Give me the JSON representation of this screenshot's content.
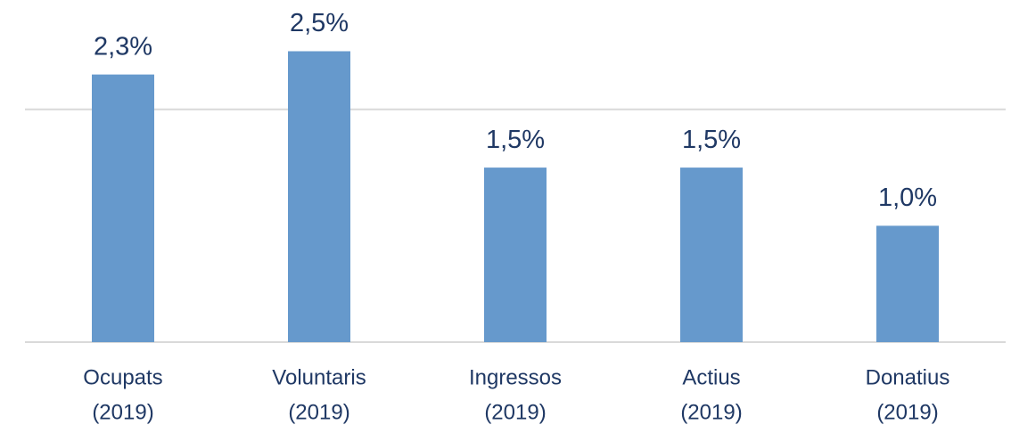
{
  "chart_data": {
    "type": "bar",
    "categories": [
      [
        "Ocupats",
        "(2019)"
      ],
      [
        "Voluntaris",
        "(2019)"
      ],
      [
        "Ingressos",
        "(2019)"
      ],
      [
        "Actius",
        "(2019)"
      ],
      [
        "Donatius",
        "(2019)"
      ]
    ],
    "values": [
      2.3,
      2.5,
      1.5,
      1.5,
      1.0
    ],
    "value_labels": [
      "2,3%",
      "2,5%",
      "1,5%",
      "1,5%",
      "1,0%"
    ],
    "color": "#6699cc",
    "ylim": [
      0,
      3
    ],
    "yticks": [
      0,
      2
    ],
    "grid": true
  }
}
